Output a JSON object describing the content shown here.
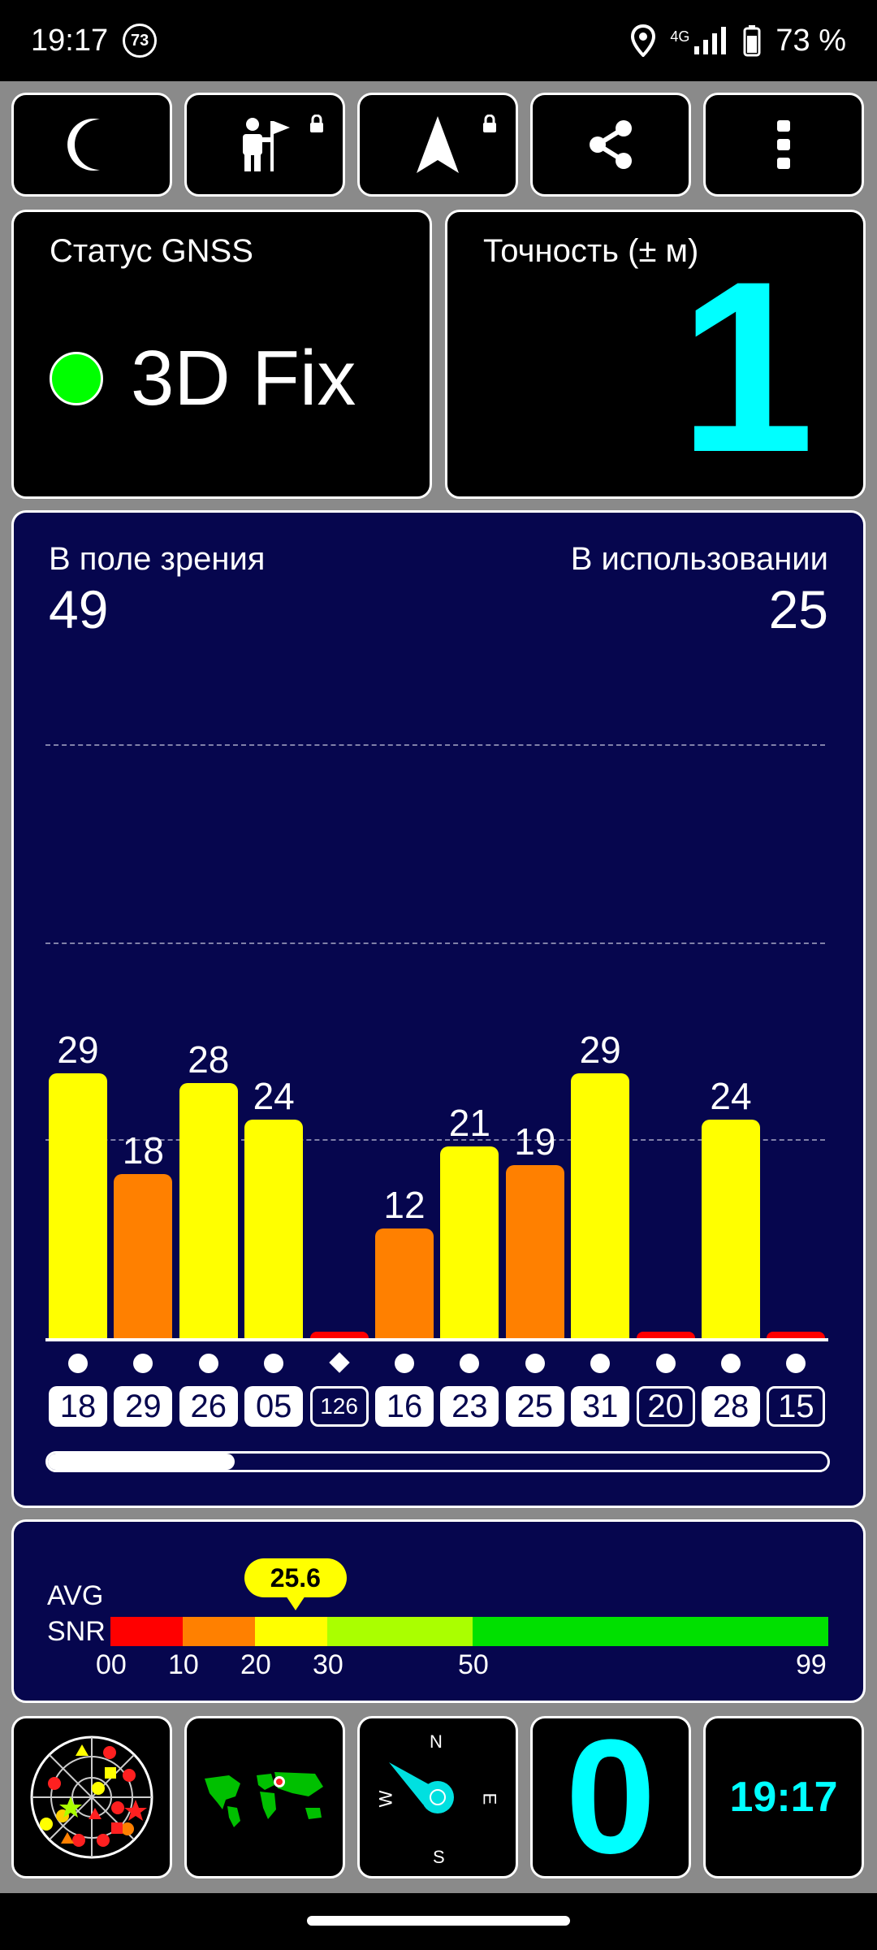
{
  "status_bar": {
    "time": "19:17",
    "notification_badge": "73",
    "network": "4G",
    "battery": "73 %",
    "icons": [
      "location-pin-icon",
      "signal-icon",
      "battery-icon"
    ]
  },
  "toolbar": {
    "buttons": [
      {
        "name": "night-mode",
        "icon": "moon-icon"
      },
      {
        "name": "waypoint",
        "icon": "person-flag-icon",
        "locked": true
      },
      {
        "name": "navigate",
        "icon": "navigation-arrow-icon",
        "locked": true
      },
      {
        "name": "share",
        "icon": "share-icon"
      },
      {
        "name": "more",
        "icon": "more-vertical-icon"
      }
    ]
  },
  "gnss_status": {
    "label": "Статус GNSS",
    "value": "3D Fix",
    "indicator_color": "#00ff00"
  },
  "accuracy": {
    "label": "Точность (± м)",
    "value": "1",
    "value_color": "#00ffff"
  },
  "satellites": {
    "in_view_label": "В поле зрения",
    "in_view": "49",
    "in_use_label": "В использовании",
    "in_use": "25",
    "scroll_position": 0.24
  },
  "chart_data": {
    "type": "bar",
    "categories": [
      "18",
      "29",
      "26",
      "05",
      "126",
      "16",
      "23",
      "25",
      "31",
      "20",
      "28",
      "15"
    ],
    "values": [
      29,
      18,
      28,
      24,
      0,
      12,
      21,
      19,
      29,
      0,
      24,
      0
    ],
    "value_labels": [
      "29",
      "18",
      "28",
      "24",
      "",
      "12",
      "21",
      "19",
      "29",
      "",
      "24",
      ""
    ],
    "used": [
      true,
      true,
      true,
      true,
      false,
      true,
      true,
      true,
      true,
      false,
      true,
      false
    ],
    "markers": [
      "dot",
      "dot",
      "dot",
      "dot",
      "diamond",
      "dot",
      "dot",
      "dot",
      "dot",
      "dot",
      "dot",
      "dot"
    ],
    "ylim": [
      0,
      50
    ],
    "grid": true,
    "colors": {
      "high": "#ffff00",
      "mid": "#ff8000",
      "low": "#ff0000"
    }
  },
  "snr": {
    "label_line1": "AVG",
    "label_line2": "SNR",
    "avg_value": "25.6",
    "avg": 25.6,
    "ticks": [
      "00",
      "10",
      "20",
      "30",
      "50",
      "99"
    ],
    "segments": [
      {
        "from": 0,
        "to": 10,
        "color": "#ff0000"
      },
      {
        "from": 10,
        "to": 20,
        "color": "#ff8000"
      },
      {
        "from": 20,
        "to": 30,
        "color": "#ffff00"
      },
      {
        "from": 30,
        "to": 50,
        "color": "#aaff00"
      },
      {
        "from": 50,
        "to": 99,
        "color": "#00e000"
      }
    ]
  },
  "bottom_tiles": {
    "sky_view": {
      "icon": "sky-plot-icon"
    },
    "world_map": {
      "icon": "world-map-icon"
    },
    "compass": {
      "icon": "compass-icon",
      "north": "N",
      "south": "S",
      "east": "E",
      "west": "W"
    },
    "speed_value": "0",
    "clock": "19:17"
  }
}
